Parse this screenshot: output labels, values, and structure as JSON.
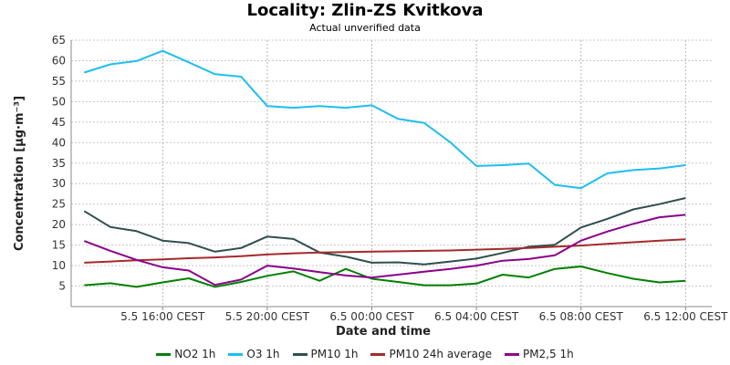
{
  "title": "Locality: Zlin-ZS Kvitkova",
  "subtitle": "Actual unverified data",
  "chart_data": {
    "type": "line",
    "xlabel": "Date and time",
    "ylabel": "Concentration [µg·m⁻³]",
    "ylim": [
      0,
      65
    ],
    "yticks": [
      5,
      10,
      15,
      20,
      25,
      30,
      35,
      40,
      45,
      50,
      55,
      60,
      65
    ],
    "x": [
      "5.5 13:00",
      "5.5 14:00",
      "5.5 15:00",
      "5.5 16:00",
      "5.5 17:00",
      "5.5 18:00",
      "5.5 19:00",
      "5.5 20:00",
      "5.5 21:00",
      "5.5 22:00",
      "5.5 23:00",
      "6.5 00:00",
      "6.5 01:00",
      "6.5 02:00",
      "6.5 03:00",
      "6.5 04:00",
      "6.5 05:00",
      "6.5 06:00",
      "6.5 07:00",
      "6.5 08:00",
      "6.5 09:00",
      "6.5 10:00",
      "6.5 11:00",
      "6.5 12:00"
    ],
    "xticks": [
      {
        "at": "5.5 16:00",
        "label": "5.5 16:00 CEST"
      },
      {
        "at": "5.5 20:00",
        "label": "5.5 20:00 CEST"
      },
      {
        "at": "6.5 00:00",
        "label": "6.5 00:00 CEST"
      },
      {
        "at": "6.5 04:00",
        "label": "6.5 04:00 CEST"
      },
      {
        "at": "6.5 08:00",
        "label": "6.5 08:00 CEST"
      },
      {
        "at": "6.5 12:00",
        "label": "6.5 12:00 CEST"
      }
    ],
    "grid": true,
    "legend_position": "bottom",
    "series": [
      {
        "name": "NO2 1h",
        "color": "#008000",
        "values": [
          5.2,
          5.7,
          4.8,
          5.9,
          6.9,
          4.8,
          6.0,
          7.5,
          8.6,
          6.3,
          9.2,
          6.8,
          6.0,
          5.2,
          5.2,
          5.6,
          7.8,
          7.1,
          9.2,
          9.8,
          8.2,
          6.8,
          5.9,
          6.3
        ]
      },
      {
        "name": "O3 1h",
        "color": "#1EBEF0",
        "values": [
          57.1,
          59.1,
          59.9,
          62.4,
          59.6,
          56.7,
          56.1,
          48.9,
          48.5,
          48.9,
          48.5,
          49.1,
          45.8,
          44.8,
          40.1,
          34.3,
          34.5,
          34.9,
          29.7,
          28.9,
          32.5,
          33.3,
          33.7,
          34.5
        ]
      },
      {
        "name": "PM10 1h",
        "color": "#2F4F4F",
        "values": [
          23.3,
          19.4,
          18.4,
          16.1,
          15.5,
          13.4,
          14.3,
          17.1,
          16.5,
          13.2,
          12.2,
          10.7,
          10.8,
          10.3,
          11.0,
          11.7,
          13.1,
          14.6,
          15.1,
          19.3,
          21.4,
          23.7,
          25.0,
          26.5
        ]
      },
      {
        "name": "PM10 24h average",
        "color": "#A52A2A",
        "values": [
          10.7,
          11.0,
          11.3,
          11.5,
          11.8,
          12.0,
          12.3,
          12.7,
          13.0,
          13.2,
          13.3,
          13.4,
          13.5,
          13.6,
          13.7,
          13.9,
          14.1,
          14.3,
          14.6,
          14.9,
          15.3,
          15.7,
          16.1,
          16.4
        ]
      },
      {
        "name": "PM2,5 1h",
        "color": "#8B008B",
        "values": [
          16.0,
          13.6,
          11.4,
          9.6,
          8.8,
          5.3,
          6.6,
          10.0,
          9.3,
          8.4,
          7.6,
          7.1,
          7.8,
          8.5,
          9.2,
          10.0,
          11.2,
          11.6,
          12.5,
          16.1,
          18.3,
          20.2,
          21.8,
          22.4
        ]
      }
    ]
  }
}
